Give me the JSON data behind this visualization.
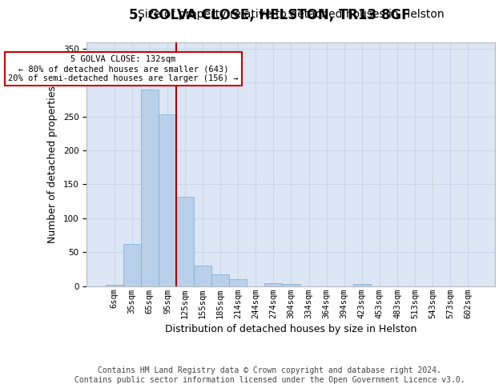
{
  "title_line1": "5, GOLVA CLOSE, HELSTON, TR13 8GF",
  "title_line2": "Size of property relative to detached houses in Helston",
  "xlabel": "Distribution of detached houses by size in Helston",
  "ylabel": "Number of detached properties",
  "categories": [
    "6sqm",
    "35sqm",
    "65sqm",
    "95sqm",
    "125sqm",
    "155sqm",
    "185sqm",
    "214sqm",
    "244sqm",
    "274sqm",
    "304sqm",
    "334sqm",
    "364sqm",
    "394sqm",
    "423sqm",
    "453sqm",
    "483sqm",
    "513sqm",
    "543sqm",
    "573sqm",
    "602sqm"
  ],
  "values": [
    2,
    62,
    290,
    253,
    132,
    30,
    17,
    10,
    0,
    4,
    3,
    0,
    0,
    0,
    3,
    0,
    0,
    0,
    0,
    0,
    0
  ],
  "bar_color": "#b8d0ea",
  "bar_edge_color": "#7aadd4",
  "bar_width": 1.0,
  "property_line_x": 3.5,
  "annotation_text": "5 GOLVA CLOSE: 132sqm\n← 80% of detached houses are smaller (643)\n20% of semi-detached houses are larger (156) →",
  "annotation_box_color": "#ffffff",
  "annotation_box_edge": "#cc0000",
  "red_line_color": "#aa0000",
  "ylim": [
    0,
    360
  ],
  "yticks": [
    0,
    50,
    100,
    150,
    200,
    250,
    300,
    350
  ],
  "grid_color": "#c8d4e8",
  "background_color": "#dce6f5",
  "footer_line1": "Contains HM Land Registry data © Crown copyright and database right 2024.",
  "footer_line2": "Contains public sector information licensed under the Open Government Licence v3.0.",
  "title_fontsize": 12,
  "subtitle_fontsize": 10,
  "axis_label_fontsize": 9,
  "tick_fontsize": 7.5,
  "footer_fontsize": 7
}
